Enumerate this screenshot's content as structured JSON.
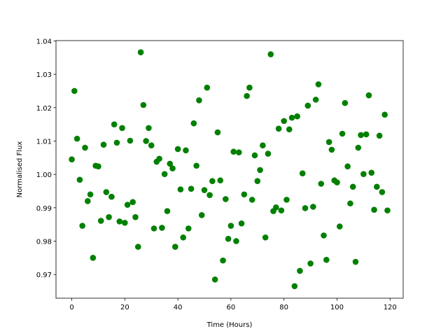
{
  "chart_data": {
    "type": "scatter",
    "xlabel": "Time (Hours)",
    "ylabel": "Normalised Flux",
    "color": "#008000",
    "x": [
      0,
      1,
      2,
      3,
      4,
      5,
      6,
      7,
      8,
      9,
      10,
      11,
      12,
      13,
      14,
      15,
      16,
      17,
      18,
      19,
      20,
      21,
      22,
      23,
      24,
      25,
      26,
      27,
      28,
      29,
      30,
      31,
      32,
      33,
      34,
      35,
      36,
      37,
      38,
      39,
      40,
      41,
      42,
      43,
      44,
      45,
      46,
      47,
      48,
      49,
      50,
      51,
      52,
      53,
      54,
      55,
      56,
      57,
      58,
      59,
      60,
      61,
      62,
      63,
      64,
      65,
      66,
      67,
      68,
      69,
      70,
      71,
      72,
      73,
      74,
      75,
      76,
      77,
      78,
      79,
      80,
      81,
      82,
      83,
      84,
      85,
      86,
      87,
      88,
      89,
      90,
      91,
      92,
      93,
      94,
      95,
      96,
      97,
      98,
      99,
      100,
      101,
      102,
      103,
      104,
      105,
      106,
      107,
      108,
      109,
      110,
      111,
      112,
      113,
      114,
      115,
      116,
      117,
      118,
      119
    ],
    "values": [
      1.0045,
      1.025,
      1.0107,
      0.9984,
      0.9846,
      1.008,
      0.992,
      0.994,
      0.975,
      1.0026,
      1.0024,
      0.9861,
      1.0089,
      0.9947,
      0.9872,
      0.9933,
      1.015,
      1.0095,
      0.9859,
      1.0139,
      0.9855,
      0.9909,
      1.0101,
      0.9917,
      0.9872,
      0.9783,
      1.0366,
      1.0208,
      1.01,
      1.0139,
      1.0087,
      0.9838,
      1.0038,
      1.0047,
      0.984,
      1.0001,
      0.989,
      1.0032,
      1.0018,
      0.9783,
      1.0076,
      0.9955,
      0.9811,
      1.0072,
      0.9838,
      0.9957,
      1.0153,
      1.0026,
      1.0222,
      0.9878,
      0.9953,
      1.026,
      0.9938,
      0.998,
      0.9685,
      1.0126,
      0.9982,
      0.9742,
      0.9926,
      0.9807,
      0.9846,
      1.0068,
      0.98,
      1.0066,
      0.9853,
      0.994,
      1.0235,
      1.026,
      0.9924,
      1.0057,
      0.998,
      1.0013,
      1.0087,
      0.9811,
      1.0062,
      1.036,
      0.989,
      0.9901,
      1.0137,
      0.9892,
      1.016,
      0.9924,
      1.0135,
      1.017,
      0.9665,
      1.0174,
      0.9711,
      1.0003,
      0.9899,
      1.0206,
      0.9733,
      0.9903,
      1.0224,
      1.027,
      0.9972,
      0.9817,
      0.9744,
      1.0097,
      1.0074,
      0.9982,
      0.9976,
      0.9844,
      1.0122,
      1.0214,
      1.0024,
      0.9913,
      0.9963,
      0.9738,
      1.008,
      1.0118,
      1.0001,
      1.012,
      1.0237,
      1.0005,
      0.9894,
      0.9963,
      1.0116,
      0.9947,
      1.0179,
      0.9892
    ],
    "xlim": [
      -5.95,
      124.95
    ],
    "ylim": [
      0.9629,
      1.0401
    ],
    "xticks": [
      0,
      20,
      40,
      60,
      80,
      100,
      120
    ],
    "yticks": [
      0.97,
      0.98,
      0.99,
      {
        "value": 1,
        "label": "1.00"
      },
      1.01,
      1.02,
      1.03,
      1.04
    ]
  }
}
